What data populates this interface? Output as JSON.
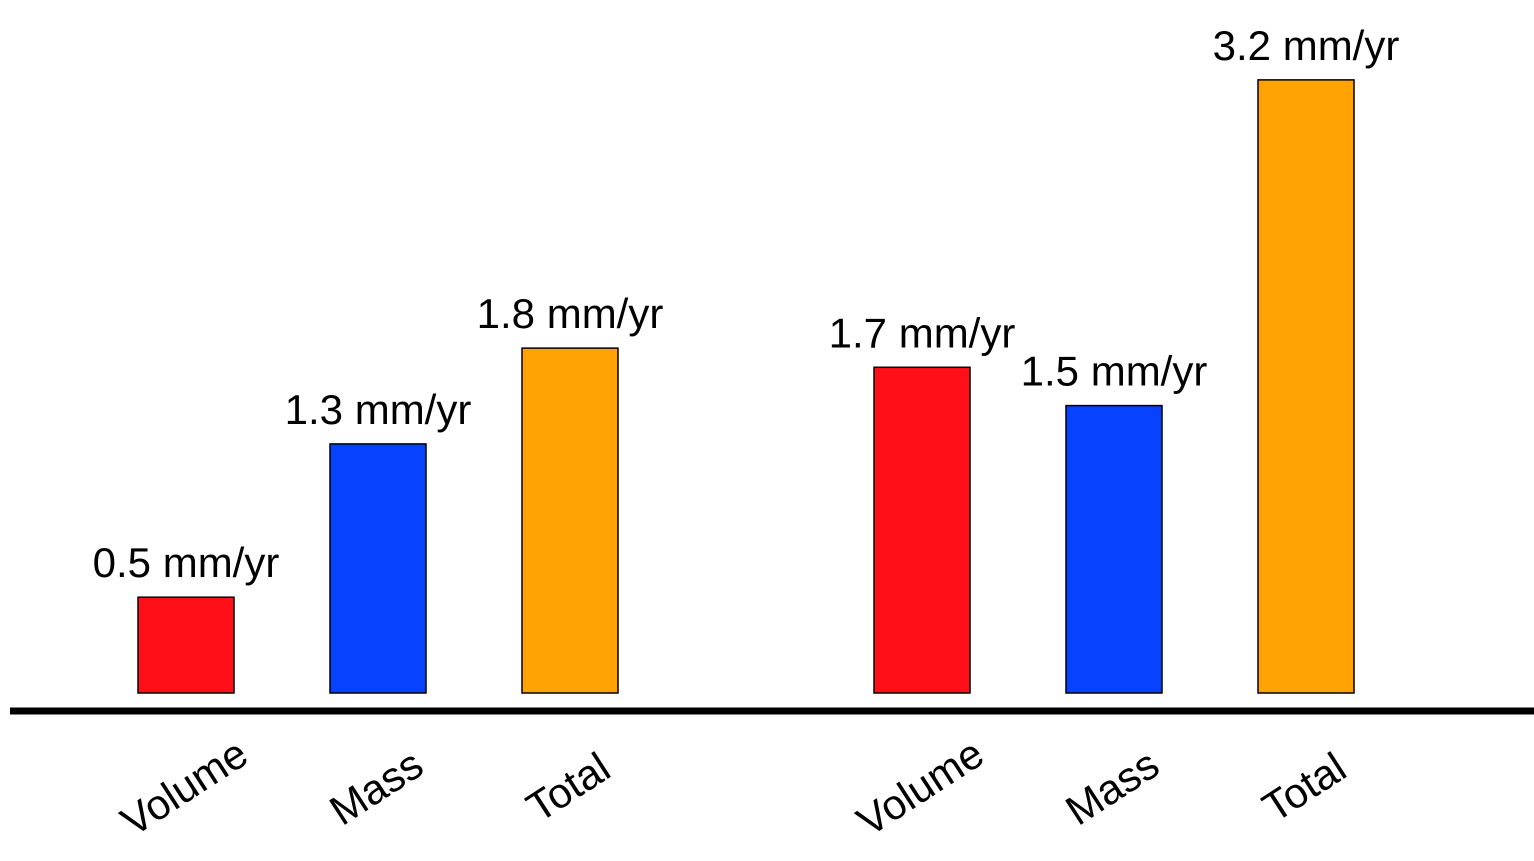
{
  "chart_data": {
    "type": "bar",
    "groups": [
      {
        "bars": [
          {
            "category": "Volume",
            "value": 0.5,
            "label": "0.5 mm/yr",
            "color": "#ff0f17"
          },
          {
            "category": "Mass",
            "value": 1.3,
            "label": "1.3 mm/yr",
            "color": "#0642ff"
          },
          {
            "category": "Total",
            "value": 1.8,
            "label": "1.8 mm/yr",
            "color": "#ffa203"
          }
        ]
      },
      {
        "bars": [
          {
            "category": "Volume",
            "value": 1.7,
            "label": "1.7 mm/yr",
            "color": "#ff0f17"
          },
          {
            "category": "Mass",
            "value": 1.5,
            "label": "1.5 mm/yr",
            "color": "#0642ff"
          },
          {
            "category": "Total",
            "value": 3.2,
            "label": "3.2 mm/yr",
            "color": "#ffa203"
          }
        ]
      }
    ],
    "title": "",
    "xlabel": "",
    "ylabel": "",
    "ylim": [
      0,
      3.2
    ],
    "grid": false,
    "legend": "none",
    "baseline_color": "#000000",
    "bar_outline_color": "#000000"
  }
}
